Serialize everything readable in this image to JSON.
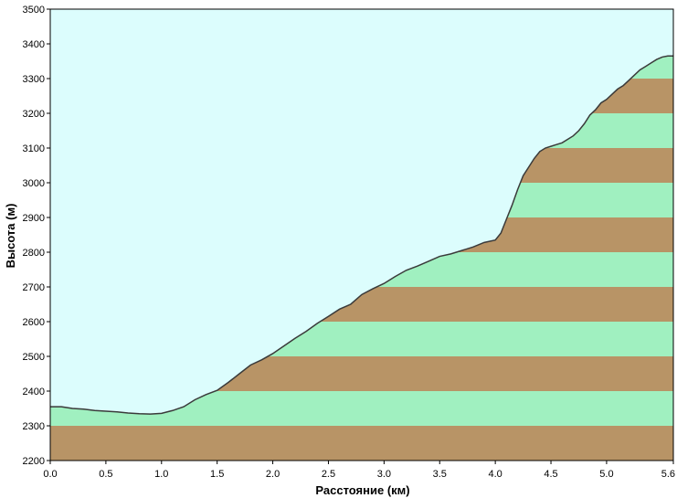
{
  "chart_data": {
    "type": "area",
    "xlabel": "Расстояние   (км)",
    "ylabel": "Высота (м)",
    "xlim": [
      0,
      5.6
    ],
    "ylim": [
      2200,
      3500
    ],
    "x_ticks": [
      "0.0",
      "0.5",
      "1.0",
      "1.5",
      "2.0",
      "2.5",
      "3.0",
      "3.5",
      "4.0",
      "4.5",
      "5.0",
      "5.6"
    ],
    "x_tick_values": [
      0,
      0.5,
      1.0,
      1.5,
      2.0,
      2.5,
      3.0,
      3.5,
      4.0,
      4.5,
      5.0,
      5.6
    ],
    "y_ticks": [
      "2200",
      "2300",
      "2400",
      "2500",
      "2600",
      "2700",
      "2800",
      "2900",
      "3000",
      "3100",
      "3200",
      "3300",
      "3400",
      "3500"
    ],
    "y_tick_values": [
      2200,
      2300,
      2400,
      2500,
      2600,
      2700,
      2800,
      2900,
      3000,
      3100,
      3200,
      3300,
      3400,
      3500
    ],
    "grid": false,
    "colors": {
      "sky": "#dcfdfd",
      "band_brown": "#b89466",
      "band_green": "#a0f0c0",
      "profile_line": "#3a3a3a"
    },
    "series": [
      {
        "x": [
          0,
          0.1,
          0.2,
          0.3,
          0.4,
          0.5,
          0.6,
          0.7,
          0.8,
          0.9,
          1.0,
          1.1,
          1.2,
          1.3,
          1.4,
          1.5,
          1.6,
          1.7,
          1.8,
          1.9,
          2.0,
          2.1,
          2.2,
          2.3,
          2.4,
          2.5,
          2.6,
          2.7,
          2.8,
          2.9,
          3.0,
          3.1,
          3.2,
          3.3,
          3.4,
          3.5,
          3.6,
          3.7,
          3.8,
          3.9,
          4.0,
          4.05,
          4.1,
          4.15,
          4.2,
          4.25,
          4.3,
          4.35,
          4.4,
          4.45,
          4.5,
          4.55,
          4.6,
          4.65,
          4.7,
          4.75,
          4.8,
          4.85,
          4.9,
          4.95,
          5.0,
          5.05,
          5.1,
          5.15,
          5.2,
          5.25,
          5.3,
          5.35,
          5.4,
          5.45,
          5.5,
          5.55,
          5.6
        ],
        "y": [
          2355,
          2355,
          2350,
          2348,
          2344,
          2342,
          2340,
          2337,
          2335,
          2334,
          2336,
          2344,
          2355,
          2375,
          2390,
          2402,
          2425,
          2450,
          2475,
          2490,
          2508,
          2530,
          2552,
          2572,
          2595,
          2615,
          2636,
          2650,
          2678,
          2695,
          2710,
          2730,
          2748,
          2760,
          2774,
          2788,
          2795,
          2805,
          2815,
          2828,
          2835,
          2855,
          2895,
          2935,
          2980,
          3020,
          3045,
          3070,
          3090,
          3100,
          3105,
          3110,
          3115,
          3125,
          3135,
          3150,
          3170,
          3195,
          3210,
          3230,
          3240,
          3255,
          3270,
          3280,
          3295,
          3310,
          3325,
          3335,
          3345,
          3355,
          3362,
          3365,
          3365
        ]
      }
    ]
  }
}
